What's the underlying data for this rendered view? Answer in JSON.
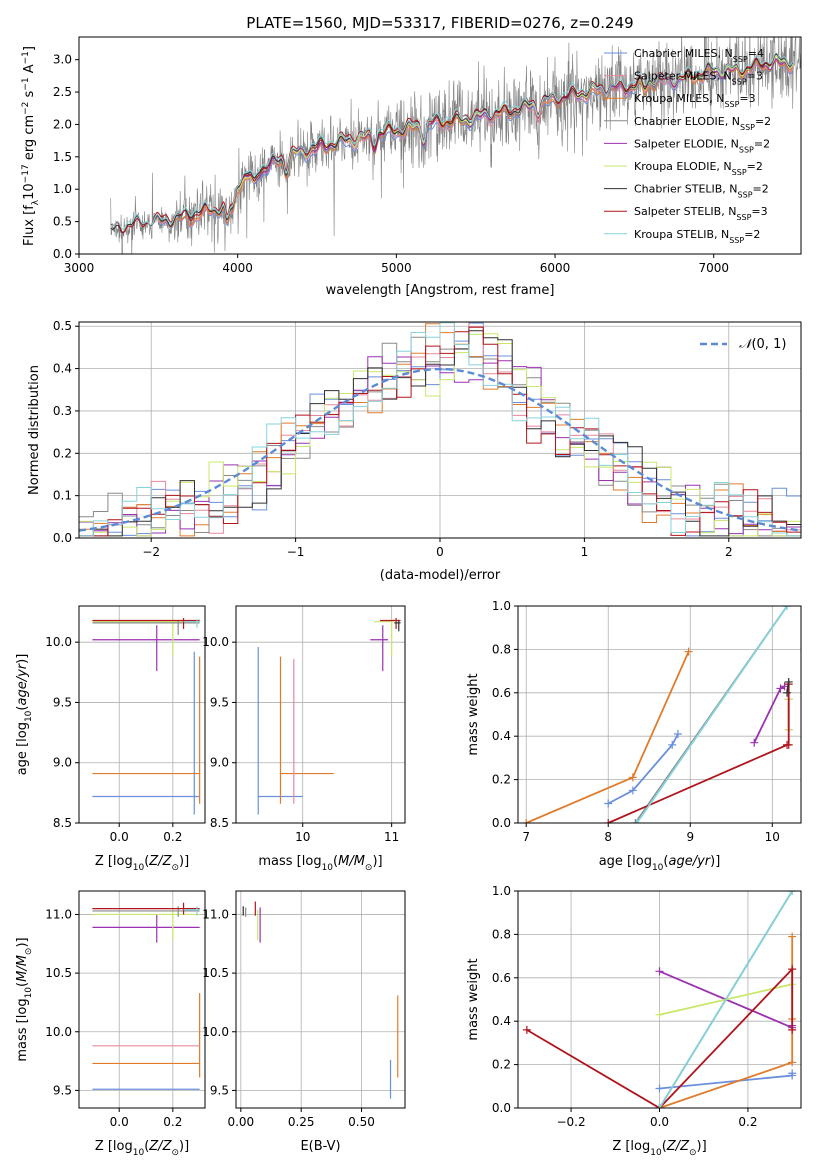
{
  "colors": {
    "Chabrier MILES": "#6a8fdc",
    "Salpeter MILES": "#e8879c",
    "Kroupa MILES": "#e07b2c",
    "Chabrier ELODIE": "#8a8a8a",
    "Salpeter ELODIE": "#9b30b0",
    "Kroupa ELODIE": "#c8e86a",
    "Chabrier STELIB": "#303030",
    "Salpeter STELIB": "#b0141c",
    "Kroupa STELIB": "#86d3dc"
  },
  "chart_data": [
    {
      "id": "spectrum",
      "type": "line",
      "title": "PLATE=1560, MJD=53317, FIBERID=0276, z=0.249",
      "xlabel": "wavelength [Angstrom, rest frame]",
      "ylabel": "Flux [f_λ 10^-17 erg cm^-2 s^-1 A^-1]",
      "xlim": [
        3000,
        7550
      ],
      "ylim": [
        0,
        3.35
      ],
      "xticks": [
        "3000",
        "4000",
        "5000",
        "6000",
        "7000"
      ],
      "yticks": [
        "0.0",
        "0.5",
        "1.0",
        "1.5",
        "2.0",
        "2.5",
        "3.0"
      ],
      "legend_position": "top-right",
      "legend": [
        {
          "name": "Chabrier MILES",
          "nssp": "4"
        },
        {
          "name": "Salpeter MILES",
          "nssp": "3"
        },
        {
          "name": "Kroupa MILES",
          "nssp": "3"
        },
        {
          "name": "Chabrier ELODIE",
          "nssp": "2"
        },
        {
          "name": "Salpeter ELODIE",
          "nssp": "2"
        },
        {
          "name": "Kroupa ELODIE",
          "nssp": "2"
        },
        {
          "name": "Chabrier STELIB",
          "nssp": "2"
        },
        {
          "name": "Salpeter STELIB",
          "nssp": "3"
        },
        {
          "name": "Kroupa STELIB",
          "nssp": "2"
        }
      ],
      "data_range": [
        3200,
        7550
      ],
      "continuum": [
        [
          3200,
          0.35
        ],
        [
          3400,
          0.45
        ],
        [
          3650,
          0.55
        ],
        [
          3900,
          0.7
        ],
        [
          4000,
          1.1
        ],
        [
          4300,
          1.5
        ],
        [
          4600,
          1.7
        ],
        [
          4900,
          1.85
        ],
        [
          5200,
          2.0
        ],
        [
          5500,
          2.1
        ],
        [
          5800,
          2.25
        ],
        [
          6100,
          2.45
        ],
        [
          6500,
          2.6
        ],
        [
          7000,
          2.8
        ],
        [
          7300,
          2.9
        ],
        [
          7550,
          3.0
        ]
      ]
    },
    {
      "id": "residuals",
      "type": "line",
      "xlabel": "(data-model)/error",
      "ylabel": "Normed distribution",
      "xlim": [
        -2.5,
        2.5
      ],
      "ylim": [
        0,
        0.51
      ],
      "xticks": [
        "-2",
        "-1",
        "0",
        "1",
        "2"
      ],
      "yticks": [
        "0.0",
        "0.1",
        "0.2",
        "0.3",
        "0.4",
        "0.5"
      ],
      "legend_position": "top-right",
      "legend_label": "N(0,1)",
      "bin_width": 0.1
    },
    {
      "id": "age_vs_Z",
      "type": "scatter",
      "xlabel": "Z [log10(Z/Z⊙)]",
      "ylabel": "age [log10(age/yr)]",
      "xlim": [
        -0.15,
        0.32
      ],
      "ylim": [
        8.5,
        10.3
      ],
      "xticks": [
        "0.0",
        "0.2"
      ],
      "yticks": [
        "8.5",
        "9.0",
        "9.5",
        "10.0"
      ],
      "points": [
        {
          "model": "Chabrier MILES",
          "x": 0.28,
          "y": 8.72,
          "xerr": [
            0.38,
            0.02
          ],
          "yerr": [
            0.15,
            1.2
          ]
        },
        {
          "model": "Kroupa MILES",
          "x": 0.3,
          "y": 8.91,
          "xerr": [
            0.4,
            0.0
          ],
          "yerr": [
            0.25,
            0.97
          ]
        },
        {
          "model": "Salpeter ELODIE",
          "x": 0.14,
          "y": 10.02,
          "xerr": [
            0.24,
            0.16
          ],
          "yerr": [
            0.26,
            0.12
          ]
        },
        {
          "model": "Kroupa ELODIE",
          "x": 0.2,
          "y": 10.17,
          "xerr": [
            0.3,
            0.1
          ],
          "yerr": [
            0.28,
            0.02
          ]
        },
        {
          "model": "Chabrier ELODIE",
          "x": 0.22,
          "y": 10.16,
          "xerr": [
            0.32,
            0.08
          ],
          "yerr": [
            0.1,
            0.02
          ]
        },
        {
          "model": "Salpeter STELIB",
          "x": 0.24,
          "y": 10.18,
          "xerr": [
            0.34,
            0.06
          ],
          "yerr": [
            0.07,
            0.02
          ]
        },
        {
          "model": "Kroupa STELIB",
          "x": 0.29,
          "y": 10.17,
          "xerr": [
            0.05,
            0.01
          ],
          "yerr": [
            0.05,
            0.02
          ]
        }
      ]
    },
    {
      "id": "age_vs_mass",
      "type": "scatter",
      "xlabel": "mass [log10(M/M⊙)]",
      "ylabel": "",
      "xlim": [
        9.25,
        11.15
      ],
      "ylim": [
        8.5,
        10.3
      ],
      "xticks": [
        "10",
        "11"
      ],
      "yticks": [
        "8.5",
        "9.0",
        "9.5",
        "10.0"
      ],
      "points": [
        {
          "model": "Chabrier MILES",
          "x": 9.5,
          "y": 8.72,
          "xerr": [
            0.0,
            0.5
          ],
          "yerr": [
            0.15,
            1.24
          ]
        },
        {
          "model": "Kroupa MILES",
          "x": 9.75,
          "y": 8.91,
          "xerr": [
            0.0,
            0.6
          ],
          "yerr": [
            0.25,
            0.97
          ]
        },
        {
          "model": "Salpeter MILES",
          "x": 9.9,
          "y": 8.91,
          "xerr": [
            0.0,
            0.0
          ],
          "yerr": [
            0.25,
            0.95
          ]
        },
        {
          "model": "Salpeter ELODIE",
          "x": 10.9,
          "y": 10.02,
          "xerr": [
            0.14,
            0.06
          ],
          "yerr": [
            0.26,
            0.12
          ]
        },
        {
          "model": "Kroupa ELODIE",
          "x": 11.0,
          "y": 10.17,
          "xerr": [
            0.2,
            0.02
          ],
          "yerr": [
            0.28,
            0.02
          ]
        },
        {
          "model": "Salpeter STELIB",
          "x": 11.05,
          "y": 10.18,
          "xerr": [
            0.18,
            0.05
          ],
          "yerr": [
            0.07,
            0.02
          ]
        },
        {
          "model": "Chabrier STELIB",
          "x": 11.08,
          "y": 10.16,
          "xerr": [
            0.05,
            0.02
          ],
          "yerr": [
            0.07,
            0.02
          ]
        }
      ]
    },
    {
      "id": "weight_vs_age",
      "type": "line",
      "xlabel": "age [log10(age/yr)]",
      "ylabel": "mass weight",
      "xlim": [
        6.9,
        10.35
      ],
      "ylim": [
        0,
        1.0
      ],
      "xticks": [
        "7",
        "8",
        "9",
        "10"
      ],
      "yticks": [
        "0.0",
        "0.2",
        "0.4",
        "0.6",
        "0.8",
        "1.0"
      ],
      "series": [
        {
          "model": "Chabrier MILES",
          "x": [
            8.0,
            8.3,
            8.78,
            8.85
          ],
          "y": [
            0.09,
            0.15,
            0.36,
            0.41
          ]
        },
        {
          "model": "Kroupa MILES",
          "x": [
            7.0,
            8.3,
            8.98
          ],
          "y": [
            0.0,
            0.21,
            0.79
          ]
        },
        {
          "model": "Salpeter MILES",
          "x": [
            10.2,
            10.2
          ],
          "y": [
            0.43,
            0.57
          ]
        },
        {
          "model": "Salpeter ELODIE",
          "x": [
            9.78,
            10.1,
            10.15
          ],
          "y": [
            0.37,
            0.62,
            0.63
          ]
        },
        {
          "model": "Kroupa ELODIE",
          "x": [
            10.2,
            10.2
          ],
          "y": [
            0.43,
            0.57
          ]
        },
        {
          "model": "Chabrier ELODIE",
          "x": [
            8.33,
            10.18
          ],
          "y": [
            0.0,
            1.0
          ]
        },
        {
          "model": "Salpeter STELIB",
          "x": [
            8.0,
            10.18,
            10.2,
            10.2
          ],
          "y": [
            0.0,
            0.36,
            0.36,
            0.64
          ]
        },
        {
          "model": "Chabrier STELIB",
          "x": [
            10.18,
            10.2
          ],
          "y": [
            0.6,
            0.65
          ]
        },
        {
          "model": "Kroupa STELIB",
          "x": [
            8.35,
            10.18
          ],
          "y": [
            0.0,
            1.0
          ]
        }
      ]
    },
    {
      "id": "mass_vs_Z",
      "type": "scatter",
      "xlabel": "Z [log10(Z/Z⊙)]",
      "ylabel": "mass [log10(M/M⊙)]",
      "xlim": [
        -0.15,
        0.32
      ],
      "ylim": [
        9.35,
        11.2
      ],
      "xticks": [
        "0.0",
        "0.2"
      ],
      "yticks": [
        "9.5",
        "10.0",
        "10.5",
        "11.0"
      ],
      "points": [
        {
          "model": "Chabrier MILES",
          "x": 0.28,
          "y": 9.51,
          "xerr": [
            0.38,
            0.02
          ],
          "yerr": [
            0.0,
            0.0
          ]
        },
        {
          "model": "Kroupa MILES",
          "x": 0.3,
          "y": 9.73,
          "xerr": [
            0.4,
            0.0
          ],
          "yerr": [
            0.12,
            0.6
          ]
        },
        {
          "model": "Salpeter MILES",
          "x": 0.3,
          "y": 9.88,
          "xerr": [
            0.4,
            0.0
          ],
          "yerr": [
            0.0,
            0.0
          ]
        },
        {
          "model": "Salpeter ELODIE",
          "x": 0.14,
          "y": 10.89,
          "xerr": [
            0.24,
            0.16
          ],
          "yerr": [
            0.13,
            0.11
          ]
        },
        {
          "model": "Kroupa ELODIE",
          "x": 0.2,
          "y": 11.0,
          "xerr": [
            0.3,
            0.1
          ],
          "yerr": [
            0.22,
            0.04
          ]
        },
        {
          "model": "Chabrier ELODIE",
          "x": 0.22,
          "y": 11.03,
          "xerr": [
            0.32,
            0.08
          ],
          "yerr": [
            0.05,
            0.04
          ]
        },
        {
          "model": "Salpeter STELIB",
          "x": 0.24,
          "y": 11.05,
          "xerr": [
            0.34,
            0.06
          ],
          "yerr": [
            0.05,
            0.05
          ]
        },
        {
          "model": "Kroupa STELIB",
          "x": 0.29,
          "y": 11.04,
          "xerr": [
            0.05,
            0.01
          ],
          "yerr": [
            0.05,
            0.03
          ]
        }
      ]
    },
    {
      "id": "mass_vs_ebv",
      "type": "scatter",
      "xlabel": "E(B-V)",
      "ylabel": "",
      "xlim": [
        -0.02,
        0.68
      ],
      "ylim": [
        9.35,
        11.2
      ],
      "xticks": [
        "0.00",
        "0.25",
        "0.50"
      ],
      "yticks": [
        "9.5",
        "10.0",
        "10.5",
        "11.0"
      ],
      "points": [
        {
          "model": "Chabrier MILES",
          "x": 0.62,
          "y": 9.51,
          "yerr": [
            0.08,
            0.25
          ]
        },
        {
          "model": "Kroupa MILES",
          "x": 0.65,
          "y": 9.73,
          "yerr": [
            0.12,
            0.58
          ]
        },
        {
          "model": "Salpeter ELODIE",
          "x": 0.08,
          "y": 10.89,
          "yerr": [
            0.13,
            0.17
          ]
        },
        {
          "model": "Kroupa ELODIE",
          "x": 0.07,
          "y": 11.0,
          "yerr": [
            0.22,
            0.04
          ]
        },
        {
          "model": "Chabrier ELODIE",
          "x": 0.02,
          "y": 11.03,
          "yerr": [
            0.05,
            0.03
          ]
        },
        {
          "model": "Salpeter STELIB",
          "x": 0.06,
          "y": 11.05,
          "yerr": [
            0.06,
            0.06
          ]
        },
        {
          "model": "Chabrier STELIB",
          "x": 0.01,
          "y": 11.04,
          "yerr": [
            0.05,
            0.03
          ]
        }
      ]
    },
    {
      "id": "weight_vs_Z",
      "type": "line",
      "xlabel": "Z [log10(Z/Z⊙)]",
      "ylabel": "mass weight",
      "xlim": [
        -0.32,
        0.32
      ],
      "ylim": [
        0,
        1.0
      ],
      "xticks": [
        "-0.2",
        "0.0",
        "0.2"
      ],
      "yticks": [
        "0.0",
        "0.2",
        "0.4",
        "0.6",
        "0.8",
        "1.0"
      ],
      "series": [
        {
          "model": "Chabrier MILES",
          "x": [
            0.0,
            0.3,
            0.3
          ],
          "y": [
            0.09,
            0.15,
            0.16
          ]
        },
        {
          "model": "Kroupa MILES",
          "x": [
            0.0,
            0.3,
            0.3,
            0.3
          ],
          "y": [
            0.0,
            0.21,
            0.41,
            0.79
          ]
        },
        {
          "model": "Salpeter ELODIE",
          "x": [
            0.0,
            0.3,
            0.3
          ],
          "y": [
            0.63,
            0.37,
            0.38
          ]
        },
        {
          "model": "Kroupa ELODIE",
          "x": [
            0.0,
            0.3
          ],
          "y": [
            0.43,
            0.57
          ]
        },
        {
          "model": "Chabrier ELODIE",
          "x": [
            0.0,
            0.3
          ],
          "y": [
            0.0,
            1.0
          ]
        },
        {
          "model": "Salpeter STELIB",
          "x": [
            -0.3,
            0.0,
            0.3,
            0.3
          ],
          "y": [
            0.36,
            0.0,
            0.64,
            0.36
          ]
        },
        {
          "model": "Kroupa STELIB",
          "x": [
            0.0,
            0.3
          ],
          "y": [
            0.0,
            1.0
          ]
        }
      ]
    }
  ]
}
